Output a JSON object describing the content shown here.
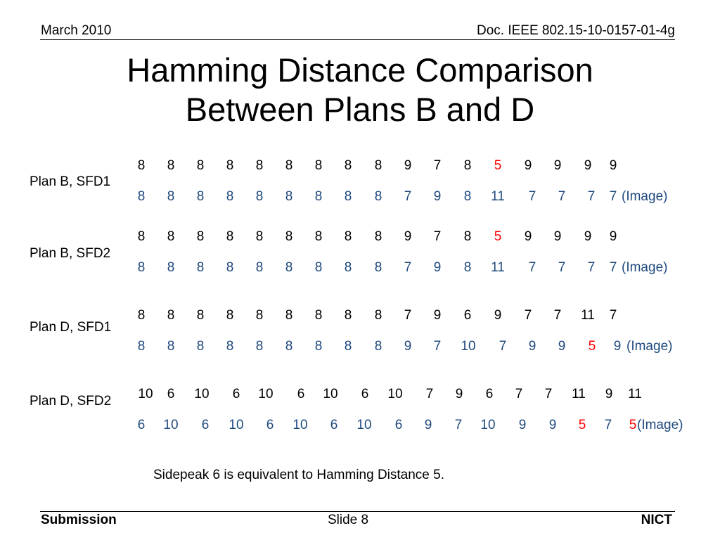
{
  "header": {
    "date": "March 2010",
    "doc": "Doc. IEEE 802.15-10-0157-01-4g"
  },
  "title": {
    "line1": "Hamming Distance Comparison",
    "line2": "Between Plans B and D"
  },
  "highlight_color": "#ff0000",
  "image_color": "#1f497d",
  "groups": [
    {
      "label": "Plan B, SFD1",
      "top": [
        "8",
        "8",
        "8",
        "8",
        "8",
        "8",
        "8",
        "8",
        "8",
        "9",
        "7",
        "8",
        "5",
        "9",
        "9",
        "9",
        "9"
      ],
      "top_highlight": [
        12
      ],
      "bottom": [
        "8",
        "8",
        "8",
        "8",
        "8",
        "8",
        "8",
        "8",
        "8",
        "7",
        "9",
        "8",
        "11",
        "7",
        "7",
        "7",
        "7"
      ],
      "bottom_highlight": [],
      "suffix": "(Image)"
    },
    {
      "label": "Plan B, SFD2",
      "top": [
        "8",
        "8",
        "8",
        "8",
        "8",
        "8",
        "8",
        "8",
        "8",
        "9",
        "7",
        "8",
        "5",
        "9",
        "9",
        "9",
        "9"
      ],
      "top_highlight": [
        12
      ],
      "bottom": [
        "8",
        "8",
        "8",
        "8",
        "8",
        "8",
        "8",
        "8",
        "8",
        "7",
        "9",
        "8",
        "11",
        "7",
        "7",
        "7",
        "7"
      ],
      "bottom_highlight": [],
      "suffix": "(Image)"
    },
    {
      "label": "Plan D, SFD1",
      "top": [
        "8",
        "8",
        "8",
        "8",
        "8",
        "8",
        "8",
        "8",
        "8",
        "7",
        "9",
        "6",
        "9",
        "7",
        "7",
        "11",
        "7"
      ],
      "top_highlight": [],
      "bottom": [
        "8",
        "8",
        "8",
        "8",
        "8",
        "8",
        "8",
        "8",
        "8",
        "9",
        "7",
        "10",
        "7",
        "9",
        "9",
        "5",
        "9"
      ],
      "bottom_highlight": [
        15
      ],
      "suffix": "(Image)"
    },
    {
      "label": "Plan D, SFD2",
      "top": [
        "10",
        "6",
        "10",
        "6",
        "10",
        "6",
        "10",
        "6",
        "10",
        "7",
        "9",
        "6",
        "7",
        "7",
        "11",
        "9",
        "11"
      ],
      "top_highlight": [],
      "bottom": [
        "6",
        "10",
        "6",
        "10",
        "6",
        "10",
        "6",
        "10",
        "6",
        "9",
        "7",
        "10",
        "9",
        "9",
        "5",
        "7",
        "5"
      ],
      "bottom_highlight": [
        14,
        16
      ],
      "suffix": "(Image)"
    }
  ],
  "note": "Sidepeak 6 is equivalent to Hamming Distance 5.",
  "footer": {
    "left": "Submission",
    "center": "Slide 8",
    "right": "NICT"
  }
}
